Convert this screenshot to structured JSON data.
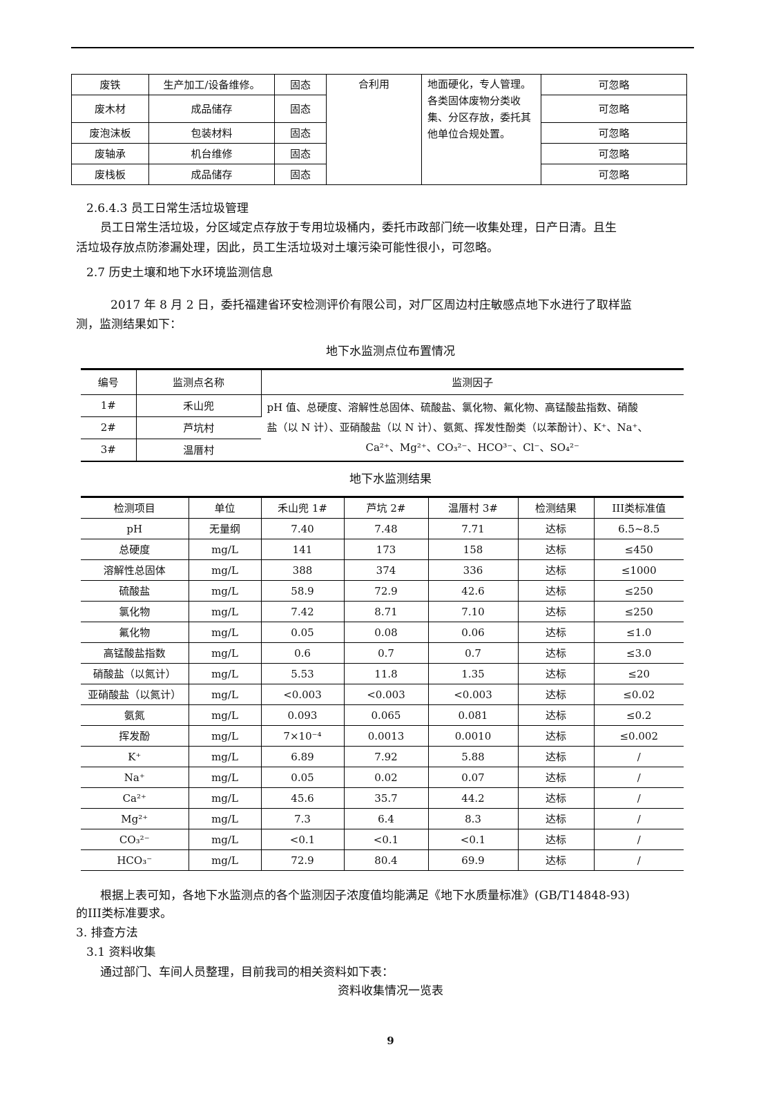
{
  "waste_table": {
    "rows": [
      {
        "name": "废铁",
        "source": "生产加工/设备维修。",
        "state": "固态",
        "impact": "可忽略"
      },
      {
        "name": "废木材",
        "source": "成品储存",
        "state": "固态",
        "impact": "可忽略"
      },
      {
        "name": "废泡沫板",
        "source": "包装材料",
        "state": "固态",
        "impact": "可忽略"
      },
      {
        "name": "废轴承",
        "source": "机台维修",
        "state": "固态",
        "impact": "可忽略"
      },
      {
        "name": "废栈板",
        "source": "成品储存",
        "state": "固态",
        "impact": "可忽略"
      }
    ],
    "disposal": "合利用",
    "measures": "地面硬化，专人管理。各类固体废物分类收集、分区存放，委托其他单位合规处置。"
  },
  "sec_2643": {
    "heading": "2.6.4.3  员工日常生活垃圾管理",
    "line1": "员工日常生活垃圾，分区域定点存放于专用垃圾桶内，委托市政部门统一收集处理，日产日清。且生",
    "line2": "活垃圾存放点防渗漏处理，因此，员工生活垃圾对土壤污染可能性很小，可忽略。"
  },
  "sec_27": {
    "heading": "2.7  历史土壤和地下水环境监测信息",
    "line1": "2017 年 8 月 2 日，委托福建省环安检测评价有限公司，对厂区周边村庄敏感点地下水进行了取样监",
    "line2": "测，监测结果如下："
  },
  "points_table": {
    "caption": "地下水监测点位布置情况",
    "headers": [
      "编号",
      "监测点名称",
      "监测因子"
    ],
    "rows": [
      {
        "id": "1#",
        "name": "禾山兜"
      },
      {
        "id": "2#",
        "name": "芦坑村"
      },
      {
        "id": "3#",
        "name": "温厝村"
      }
    ],
    "factors_line1": "pH 值、总硬度、溶解性总固体、硫酸盐、氯化物、氟化物、高锰酸盐指数、硝酸",
    "factors_line2": "盐（以 N 计）、亚硝酸盐（以 N 计）、氨氮、挥发性酚类（以苯酚计）、K⁺、Na⁺、",
    "factors_line3": "Ca²⁺、Mg²⁺、CO₃²⁻、HCO³⁻、Cl⁻、SO₄²⁻"
  },
  "results_table": {
    "caption": "地下水监测结果",
    "headers": [
      "检测项目",
      "单位",
      "禾山兜 1#",
      "芦坑 2#",
      "温厝村 3#",
      "检测结果",
      "III类标准值"
    ],
    "rows": [
      [
        "pH",
        "无量纲",
        "7.40",
        "7.48",
        "7.71",
        "达标",
        "6.5~8.5"
      ],
      [
        "总硬度",
        "mg/L",
        "141",
        "173",
        "158",
        "达标",
        "≤450"
      ],
      [
        "溶解性总固体",
        "mg/L",
        "388",
        "374",
        "336",
        "达标",
        "≤1000"
      ],
      [
        "硫酸盐",
        "mg/L",
        "58.9",
        "72.9",
        "42.6",
        "达标",
        "≤250"
      ],
      [
        "氯化物",
        "mg/L",
        "7.42",
        "8.71",
        "7.10",
        "达标",
        "≤250"
      ],
      [
        "氟化物",
        "mg/L",
        "0.05",
        "0.08",
        "0.06",
        "达标",
        "≤1.0"
      ],
      [
        "高锰酸盐指数",
        "mg/L",
        "0.6",
        "0.7",
        "0.7",
        "达标",
        "≤3.0"
      ],
      [
        "硝酸盐（以氮计）",
        "mg/L",
        "5.53",
        "11.8",
        "1.35",
        "达标",
        "≤20"
      ],
      [
        "亚硝酸盐（以氮计）",
        "mg/L",
        "<0.003",
        "<0.003",
        "<0.003",
        "达标",
        "≤0.02"
      ],
      [
        "氨氮",
        "mg/L",
        "0.093",
        "0.065",
        "0.081",
        "达标",
        "≤0.2"
      ],
      [
        "挥发酚",
        "mg/L",
        "7×10⁻⁴",
        "0.0013",
        "0.0010",
        "达标",
        "≤0.002"
      ],
      [
        "K⁺",
        "mg/L",
        "6.89",
        "7.92",
        "5.88",
        "达标",
        "/"
      ],
      [
        "Na⁺",
        "mg/L",
        "0.05",
        "0.02",
        "0.07",
        "达标",
        "/"
      ],
      [
        "Ca²⁺",
        "mg/L",
        "45.6",
        "35.7",
        "44.2",
        "达标",
        "/"
      ],
      [
        "Mg²⁺",
        "mg/L",
        "7.3",
        "6.4",
        "8.3",
        "达标",
        "/"
      ],
      [
        "CO₃²⁻",
        "mg/L",
        "<0.1",
        "<0.1",
        "<0.1",
        "达标",
        "/"
      ],
      [
        "HCO₃⁻",
        "mg/L",
        "72.9",
        "80.4",
        "69.9",
        "达标",
        "/"
      ]
    ]
  },
  "conclusion": {
    "line1": "根据上表可知，各地下水监测点的各个监测因子浓度值均能满足《地下水质量标准》(GB/T14848-93)",
    "line2": "的III类标准要求。"
  },
  "sec_3": {
    "heading": "3.  排查方法",
    "sub": "3.1  资料收集",
    "line": "通过部门、车间人员整理，目前我司的相关资料如下表：",
    "caption": "资料收集情况一览表"
  },
  "page_number": "9"
}
